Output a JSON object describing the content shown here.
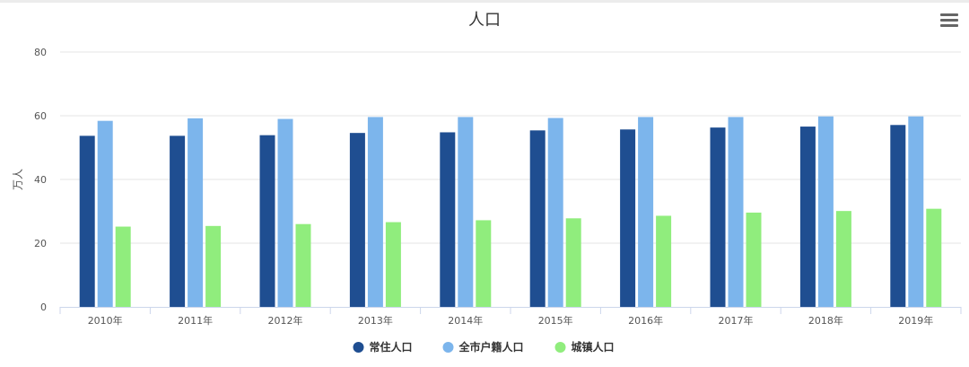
{
  "chart_data": {
    "type": "bar",
    "title": "人口",
    "xlabel": "",
    "ylabel": "万人",
    "ylim": [
      0,
      80
    ],
    "yticks": [
      0,
      20,
      40,
      60,
      80
    ],
    "categories": [
      "2010年",
      "2011年",
      "2012年",
      "2013年",
      "2014年",
      "2015年",
      "2016年",
      "2017年",
      "2018年",
      "2019年"
    ],
    "series": [
      {
        "name": "常住人口",
        "color": "#1f4e91",
        "values": [
          53.7,
          53.7,
          53.9,
          54.6,
          54.8,
          55.4,
          55.7,
          56.3,
          56.6,
          57.1
        ]
      },
      {
        "name": "全市户籍人口",
        "color": "#7cb5ec",
        "values": [
          58.4,
          59.2,
          59.0,
          59.6,
          59.6,
          59.3,
          59.6,
          59.6,
          59.8,
          59.8
        ]
      },
      {
        "name": "城镇人口",
        "color": "#90ed7d",
        "values": [
          25.2,
          25.4,
          26.0,
          26.6,
          27.2,
          27.8,
          28.6,
          29.6,
          30.1,
          30.8
        ]
      }
    ],
    "grid": true,
    "legend": "bottom-center"
  },
  "toolbar": {
    "menu_icon": "hamburger-menu-icon"
  }
}
